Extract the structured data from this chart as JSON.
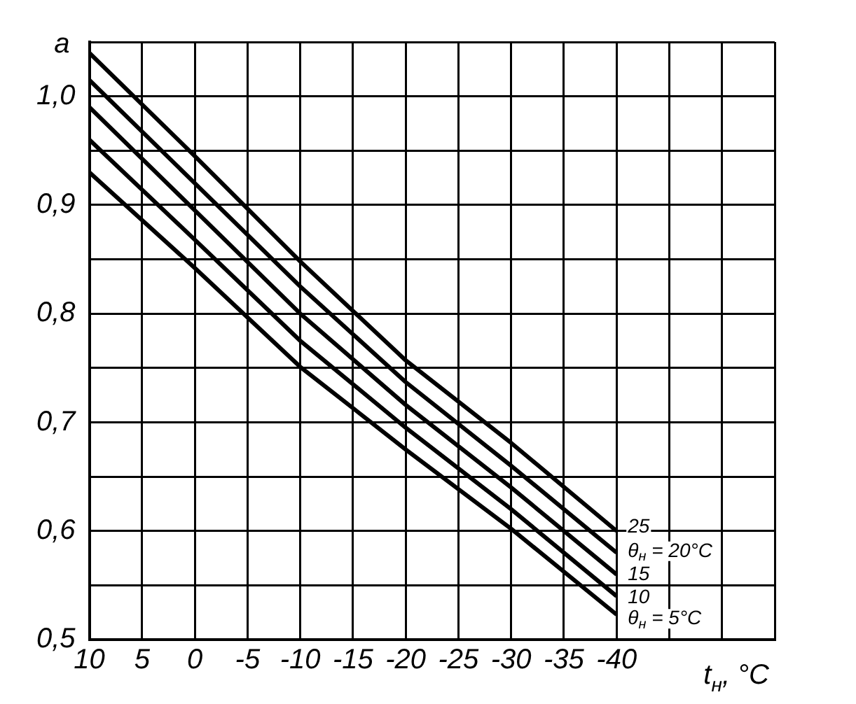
{
  "chart_data": {
    "type": "line",
    "ylabel": "a",
    "xlabel": "t$_{н}$, °C",
    "x": [
      10,
      0,
      -10,
      -20,
      -30,
      -40
    ],
    "series": [
      {
        "name": "25",
        "color": "#000000",
        "values": [
          1.04,
          0.945,
          0.848,
          0.757,
          0.681,
          0.6
        ]
      },
      {
        "name": "θ$_{н}$ = 20°C",
        "color": "#000000",
        "values": [
          1.015,
          0.92,
          0.825,
          0.737,
          0.66,
          0.58
        ]
      },
      {
        "name": "15",
        "color": "#000000",
        "values": [
          0.99,
          0.895,
          0.8,
          0.716,
          0.64,
          0.56
        ]
      },
      {
        "name": "10",
        "color": "#000000",
        "values": [
          0.96,
          0.868,
          0.775,
          0.695,
          0.62,
          0.54
        ]
      },
      {
        "name": "θ$_{н}$ = 5°C",
        "color": "#000000",
        "values": [
          0.93,
          0.842,
          0.751,
          0.675,
          0.602,
          0.523
        ]
      }
    ],
    "xlim": [
      10,
      -55
    ],
    "xticks": [
      10,
      5,
      0,
      -5,
      -10,
      -15,
      -20,
      -25,
      -30,
      -35,
      -40,
      {
        "value": -45,
        "label": null
      },
      {
        "value": -50,
        "label": null
      },
      {
        "value": -55,
        "label": null
      }
    ],
    "ylim": [
      0.5,
      1.05
    ],
    "yticks": [
      {
        "value": 0.5,
        "label": "0,5"
      },
      {
        "value": 0.55,
        "label": null
      },
      {
        "value": 0.6,
        "label": "0,6"
      },
      {
        "value": 0.65,
        "label": null
      },
      {
        "value": 0.7,
        "label": "0,7"
      },
      {
        "value": 0.75,
        "label": null
      },
      {
        "value": 0.8,
        "label": "0,8"
      },
      {
        "value": 0.85,
        "label": null
      },
      {
        "value": 0.9,
        "label": "0,9"
      },
      {
        "value": 0.95,
        "label": null
      },
      {
        "value": 1.0,
        "label": "1,0"
      },
      {
        "value": 1.05,
        "label": null
      }
    ],
    "grid": true,
    "legend": false,
    "marker": "none",
    "line_style": "solid"
  }
}
